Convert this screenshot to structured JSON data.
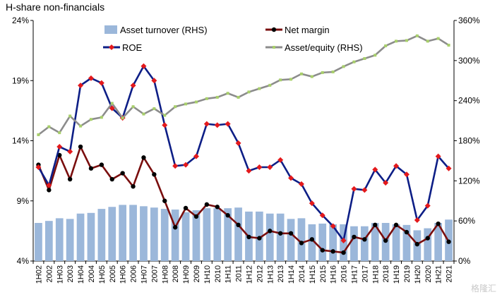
{
  "chart_data": {
    "type": "bar",
    "title": "H-share non-financials",
    "y_left": {
      "min": 4,
      "max": 24,
      "ticks": [
        "4%",
        "9%",
        "14%",
        "19%",
        "24%"
      ],
      "tick_values": [
        4,
        9,
        14,
        19,
        24
      ]
    },
    "y_right": {
      "min": 0,
      "max": 360,
      "ticks": [
        "0%",
        "60%",
        "120%",
        "180%",
        "240%",
        "300%",
        "360%"
      ],
      "tick_values": [
        0,
        60,
        120,
        180,
        240,
        300,
        360
      ]
    },
    "x": [
      "1H02",
      "2002",
      "1H03",
      "2003",
      "1H04",
      "2004",
      "1H05",
      "2005",
      "1H06",
      "2006",
      "1H07",
      "2007",
      "1H08",
      "2008",
      "1H09",
      "2009",
      "1H10",
      "2010",
      "1H11",
      "2011",
      "1H12",
      "2012",
      "1H13",
      "2013",
      "1H14",
      "2014",
      "1H15",
      "2015",
      "1H16",
      "2016",
      "1H17",
      "2017",
      "1H18",
      "2018",
      "1H19",
      "2019",
      "1H20",
      "2020",
      "1H21",
      "2021"
    ],
    "legend_placement": "top",
    "series": [
      {
        "name": "Asset turnover (RHS)",
        "type": "bar",
        "axis": "right",
        "color": "#9bb7da",
        "values": [
          57,
          60,
          64,
          63,
          71,
          72,
          78,
          81,
          84,
          84,
          82,
          80,
          78,
          77,
          73,
          76,
          79,
          79,
          79,
          80,
          74,
          74,
          71,
          71,
          63,
          64,
          55,
          56,
          55,
          55,
          52,
          52,
          57,
          57,
          55,
          54,
          46,
          49,
          57,
          62
        ]
      },
      {
        "name": "Net margin",
        "type": "line",
        "axis": "left",
        "color": "#7a0e0e",
        "marker": "#000000",
        "values": [
          12.0,
          9.9,
          12.8,
          10.8,
          13.5,
          11.7,
          12.0,
          10.8,
          11.3,
          10.2,
          12.6,
          11.2,
          9.0,
          6.8,
          8.4,
          7.7,
          8.7,
          8.5,
          7.8,
          7.0,
          6.0,
          5.9,
          6.5,
          6.3,
          6.3,
          5.5,
          5.8,
          4.9,
          4.8,
          4.7,
          6.0,
          5.8,
          7.0,
          5.7,
          7.0,
          6.4,
          5.4,
          5.9,
          7.1,
          5.6
        ]
      },
      {
        "name": "ROE",
        "type": "line",
        "axis": "left",
        "color": "#0d1e86",
        "marker": "#e3191c",
        "values": [
          11.8,
          10.3,
          13.5,
          13.1,
          18.6,
          19.2,
          18.8,
          16.7,
          15.9,
          18.6,
          20.2,
          19.0,
          15.3,
          11.9,
          12.0,
          12.7,
          15.4,
          15.3,
          15.4,
          13.8,
          11.5,
          11.8,
          11.8,
          12.4,
          10.9,
          10.4,
          8.8,
          7.8,
          6.9,
          5.7,
          10.0,
          9.9,
          11.6,
          10.5,
          11.9,
          11.2,
          7.4,
          8.6,
          12.7,
          11.7
        ]
      },
      {
        "name": "Asset/equity (RHS)",
        "type": "line",
        "axis": "right",
        "color": "#8c8c8c",
        "marker": "#a8cf6b",
        "values": [
          189,
          201,
          192,
          217,
          202,
          212,
          215,
          236,
          214,
          231,
          220,
          228,
          218,
          231,
          235,
          238,
          243,
          245,
          251,
          245,
          253,
          258,
          263,
          271,
          272,
          280,
          276,
          282,
          283,
          291,
          298,
          303,
          308,
          322,
          329,
          330,
          337,
          329,
          333,
          323
        ]
      }
    ]
  },
  "watermark": "格隆汇"
}
